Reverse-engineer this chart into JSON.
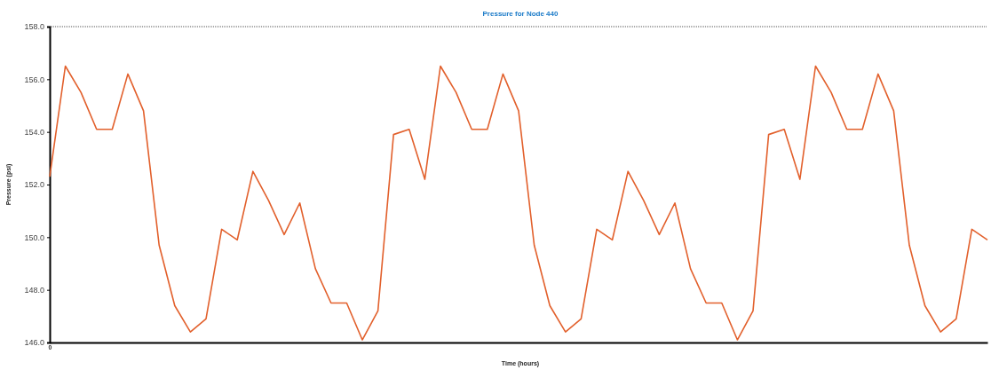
{
  "chart_data": {
    "type": "line",
    "title": "Pressure for Node 440",
    "xlabel": "Time (hours)",
    "ylabel": "Pressure (psi)",
    "categories": [
      "0",
      null,
      null,
      null,
      null,
      null,
      null,
      null,
      null,
      null,
      null,
      null,
      null,
      null,
      null,
      null,
      null,
      null,
      null,
      null,
      null,
      null,
      null,
      null,
      null,
      null,
      null,
      null,
      null,
      null,
      null,
      null,
      null,
      null,
      null,
      null,
      null,
      null,
      null,
      null,
      null,
      null,
      null,
      null,
      null,
      null,
      null,
      null,
      null,
      null,
      null,
      null,
      null,
      null,
      null,
      null,
      null,
      null,
      null,
      null,
      null
    ],
    "series": [
      {
        "color": "#e2602c",
        "values": [
          152.3,
          156.5,
          155.5,
          154.1,
          154.1,
          156.2,
          154.8,
          149.7,
          147.4,
          146.4,
          146.9,
          150.3,
          149.9,
          152.5,
          151.4,
          150.1,
          151.3,
          148.8,
          147.5,
          147.5,
          146.1,
          147.2,
          153.9,
          154.1,
          152.2,
          156.5,
          155.5,
          154.1,
          154.1,
          156.2,
          154.8,
          149.7,
          147.4,
          146.4,
          146.9,
          150.3,
          149.9,
          152.5,
          151.4,
          150.1,
          151.3,
          148.8,
          147.5,
          147.5,
          146.1,
          147.2,
          153.9,
          154.1,
          152.2,
          156.5,
          155.5,
          154.1,
          154.1,
          156.2,
          154.8,
          149.7,
          147.4,
          146.4,
          146.9,
          150.3,
          149.9
        ]
      }
    ],
    "ylim": [
      146,
      158
    ],
    "yticks": [
      {
        "value": 146,
        "label": "146.0"
      },
      {
        "value": 148,
        "label": "148.0"
      },
      {
        "value": 150,
        "label": "150.0"
      },
      {
        "value": 152,
        "label": "152.0"
      },
      {
        "value": 154,
        "label": "154.0"
      },
      {
        "value": 156,
        "label": "156.0"
      },
      {
        "value": 158,
        "label": "158.0"
      }
    ],
    "grid": false,
    "marker": "none",
    "line_style": "solid"
  }
}
